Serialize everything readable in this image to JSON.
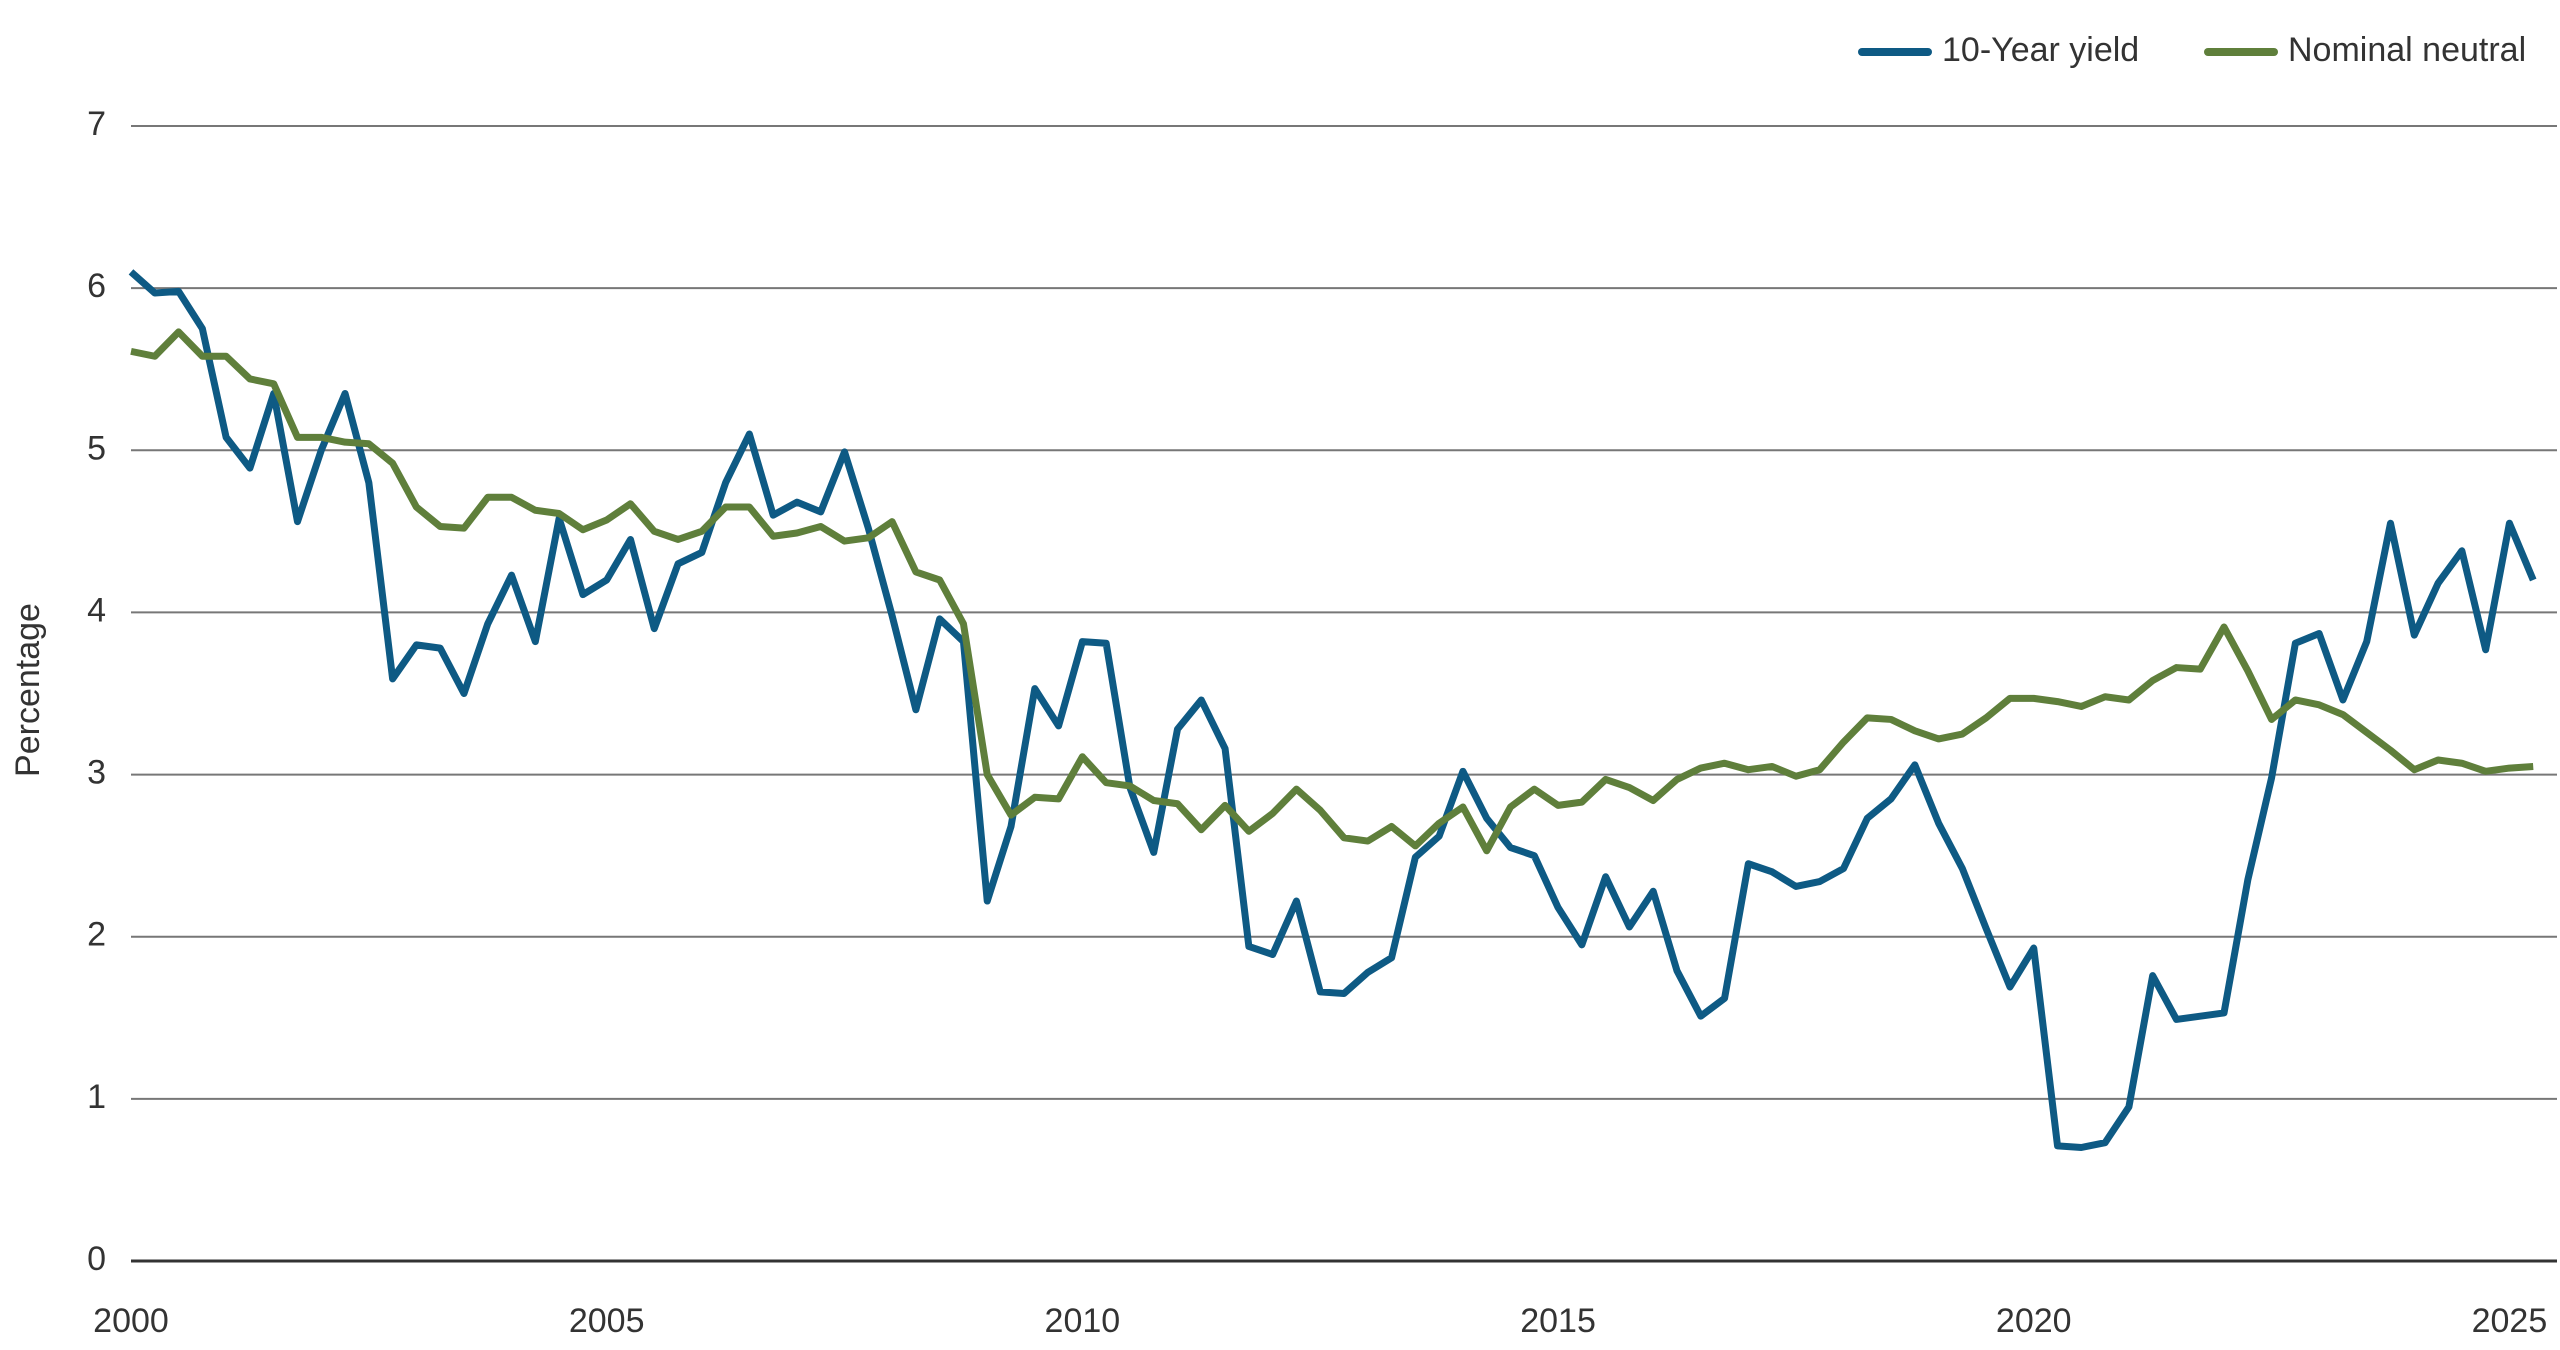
{
  "chart_data": {
    "type": "line",
    "y_label": "Percentage",
    "x": [
      2000,
      2000.25,
      2000.5,
      2000.75,
      2001,
      2001.25,
      2001.5,
      2001.75,
      2002,
      2002.25,
      2002.5,
      2002.75,
      2003,
      2003.25,
      2003.5,
      2003.75,
      2004,
      2004.25,
      2004.5,
      2004.75,
      2005,
      2005.25,
      2005.5,
      2005.75,
      2006,
      2006.25,
      2006.5,
      2006.75,
      2007,
      2007.25,
      2007.5,
      2007.75,
      2008,
      2008.25,
      2008.5,
      2008.75,
      2009,
      2009.25,
      2009.5,
      2009.75,
      2010,
      2010.25,
      2010.5,
      2010.75,
      2011,
      2011.25,
      2011.5,
      2011.75,
      2012,
      2012.25,
      2012.5,
      2012.75,
      2013,
      2013.25,
      2013.5,
      2013.75,
      2014,
      2014.25,
      2014.5,
      2014.75,
      2015,
      2015.25,
      2015.5,
      2015.75,
      2016,
      2016.25,
      2016.5,
      2016.75,
      2017,
      2017.25,
      2017.5,
      2017.75,
      2018,
      2018.25,
      2018.5,
      2018.75,
      2019,
      2019.25,
      2019.5,
      2019.75,
      2020,
      2020.25,
      2020.5,
      2020.75,
      2021,
      2021.25,
      2021.5,
      2021.75,
      2022,
      2022.25,
      2022.5,
      2022.75,
      2023,
      2023.25,
      2023.5,
      2023.75,
      2024,
      2024.25,
      2024.5,
      2024.75,
      2025,
      2025.25
    ],
    "series": [
      {
        "name": "10-Year yield",
        "color": "#0e5a84",
        "values": [
          6.1,
          5.97,
          5.98,
          5.75,
          5.08,
          4.89,
          5.35,
          4.56,
          5.0,
          5.35,
          4.8,
          3.59,
          3.8,
          3.78,
          3.5,
          3.93,
          4.23,
          3.82,
          4.58,
          4.11,
          4.2,
          4.45,
          3.9,
          4.3,
          4.37,
          4.8,
          5.1,
          4.6,
          4.68,
          4.62,
          4.99,
          4.52,
          3.98,
          3.4,
          3.96,
          3.82,
          2.22,
          2.68,
          3.53,
          3.3,
          3.82,
          3.81,
          2.92,
          2.52,
          3.28,
          3.46,
          3.16,
          1.94,
          1.89,
          2.22,
          1.66,
          1.65,
          1.78,
          1.87,
          2.49,
          2.62,
          3.02,
          2.73,
          2.55,
          2.5,
          2.18,
          1.95,
          2.37,
          2.06,
          2.28,
          1.79,
          1.51,
          1.62,
          2.45,
          2.4,
          2.31,
          2.34,
          2.42,
          2.73,
          2.85,
          3.06,
          2.7,
          2.42,
          2.05,
          1.69,
          1.93,
          0.71,
          0.7,
          0.73,
          0.95,
          1.76,
          1.49,
          1.51,
          1.53,
          2.35,
          2.98,
          3.81,
          3.87,
          3.46,
          3.82,
          4.55,
          3.86,
          4.18,
          4.38,
          3.77,
          4.55,
          4.2
        ]
      },
      {
        "name": "Nominal neutral",
        "color": "#5f7f3b",
        "values": [
          5.61,
          5.58,
          5.73,
          5.58,
          5.58,
          5.44,
          5.41,
          5.08,
          5.08,
          5.05,
          5.04,
          4.92,
          4.65,
          4.53,
          4.52,
          4.71,
          4.71,
          4.63,
          4.61,
          4.51,
          4.57,
          4.67,
          4.5,
          4.45,
          4.5,
          4.65,
          4.65,
          4.47,
          4.49,
          4.53,
          4.44,
          4.46,
          4.56,
          4.25,
          4.2,
          3.93,
          3.0,
          2.75,
          2.86,
          2.85,
          3.11,
          2.95,
          2.93,
          2.84,
          2.82,
          2.66,
          2.81,
          2.65,
          2.76,
          2.91,
          2.78,
          2.61,
          2.59,
          2.68,
          2.56,
          2.7,
          2.8,
          2.53,
          2.8,
          2.91,
          2.81,
          2.83,
          2.97,
          2.92,
          2.84,
          2.97,
          3.04,
          3.07,
          3.03,
          3.05,
          2.99,
          3.03,
          3.2,
          3.35,
          3.34,
          3.27,
          3.22,
          3.25,
          3.35,
          3.47,
          3.47,
          3.45,
          3.42,
          3.48,
          3.46,
          3.58,
          3.66,
          3.65,
          3.91,
          3.64,
          3.34,
          3.46,
          3.43,
          3.37,
          3.26,
          3.15,
          3.03,
          3.09,
          3.07,
          3.02,
          3.04,
          3.05
        ]
      }
    ],
    "xlim": [
      2000,
      2025.5
    ],
    "xticks": [
      2000,
      2005,
      2010,
      2015,
      2020,
      2025
    ],
    "ylim": [
      0,
      7
    ],
    "yticks": [
      0,
      1,
      2,
      3,
      4,
      5,
      6,
      7
    ],
    "grid": true,
    "legend": "top-right"
  }
}
